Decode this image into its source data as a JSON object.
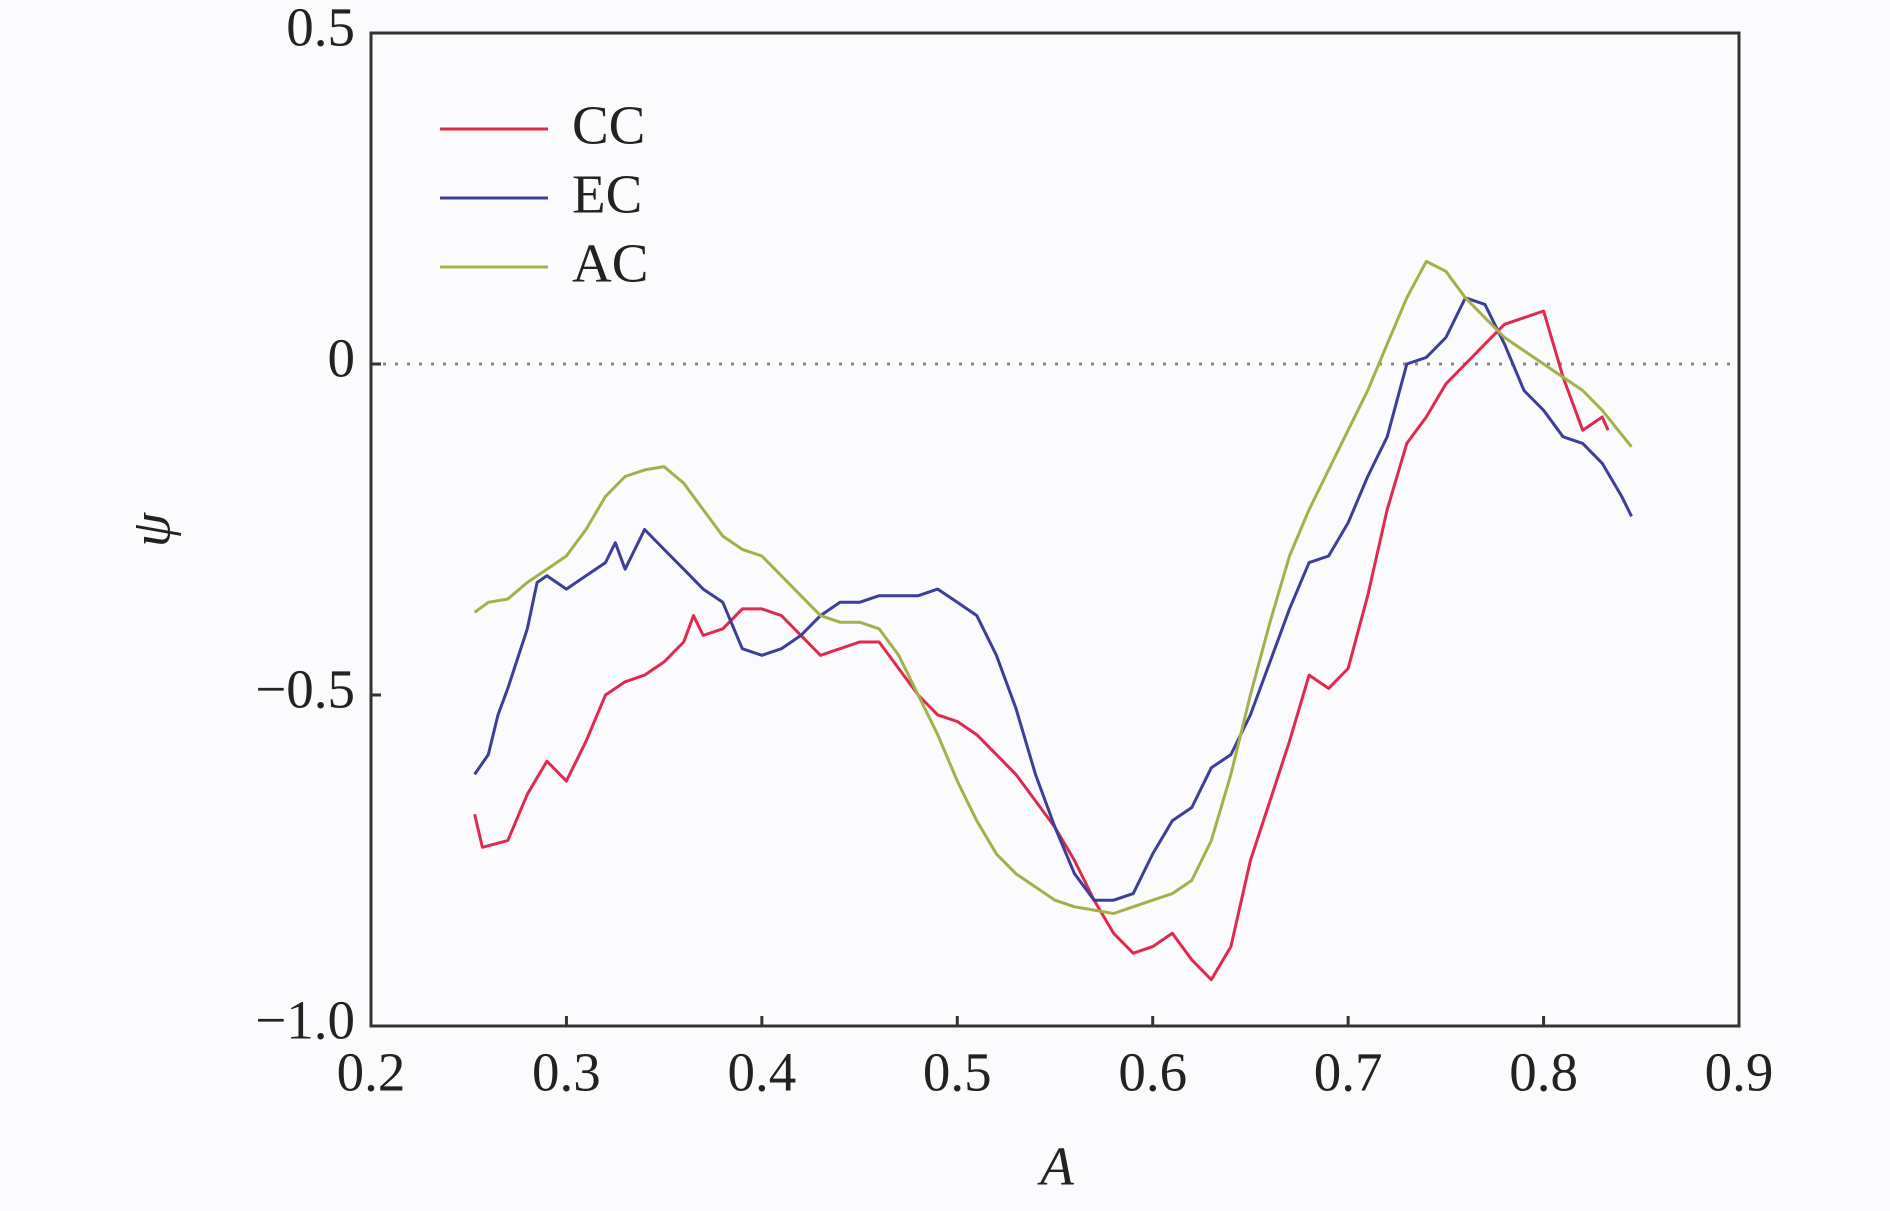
{
  "chart_data": {
    "type": "line",
    "xlabel": "A",
    "ylabel": "ψ",
    "xlim": [
      0.2,
      0.9
    ],
    "xticks": [
      0.2,
      0.3,
      0.4,
      0.5,
      0.6,
      0.7,
      0.8,
      0.9
    ],
    "ylim": [
      -1.0,
      0.5
    ],
    "yticks": [
      {
        "value": -1.0,
        "label": "−1.0"
      },
      {
        "value": -0.5,
        "label": "−0.5"
      },
      0,
      0.5
    ],
    "hline": 0,
    "legend": "upper-left",
    "series": [
      {
        "name": "CC",
        "color": "#e0294e",
        "x": [
          0.253,
          0.257,
          0.27,
          0.28,
          0.29,
          0.3,
          0.31,
          0.32,
          0.33,
          0.34,
          0.35,
          0.36,
          0.365,
          0.37,
          0.38,
          0.39,
          0.4,
          0.41,
          0.42,
          0.43,
          0.44,
          0.45,
          0.46,
          0.47,
          0.48,
          0.49,
          0.5,
          0.51,
          0.52,
          0.53,
          0.54,
          0.55,
          0.56,
          0.57,
          0.58,
          0.59,
          0.6,
          0.61,
          0.62,
          0.63,
          0.64,
          0.65,
          0.66,
          0.67,
          0.68,
          0.69,
          0.7,
          0.71,
          0.72,
          0.73,
          0.74,
          0.75,
          0.76,
          0.77,
          0.78,
          0.79,
          0.8,
          0.81,
          0.82,
          0.83,
          0.833
        ],
        "values": [
          -0.68,
          -0.73,
          -0.72,
          -0.65,
          -0.6,
          -0.63,
          -0.57,
          -0.5,
          -0.48,
          -0.47,
          -0.45,
          -0.42,
          -0.38,
          -0.41,
          -0.4,
          -0.37,
          -0.37,
          -0.38,
          -0.41,
          -0.44,
          -0.43,
          -0.42,
          -0.42,
          -0.46,
          -0.5,
          -0.53,
          -0.54,
          -0.56,
          -0.59,
          -0.62,
          -0.66,
          -0.7,
          -0.75,
          -0.81,
          -0.86,
          -0.89,
          -0.88,
          -0.86,
          -0.9,
          -0.93,
          -0.88,
          -0.75,
          -0.66,
          -0.57,
          -0.47,
          -0.49,
          -0.46,
          -0.35,
          -0.22,
          -0.12,
          -0.08,
          -0.03,
          0.0,
          0.03,
          0.06,
          0.07,
          0.08,
          -0.02,
          -0.1,
          -0.08,
          -0.1
        ]
      },
      {
        "name": "EC",
        "color": "#3b3f96",
        "x": [
          0.253,
          0.26,
          0.265,
          0.27,
          0.28,
          0.285,
          0.29,
          0.3,
          0.31,
          0.32,
          0.325,
          0.33,
          0.34,
          0.35,
          0.36,
          0.37,
          0.38,
          0.39,
          0.4,
          0.41,
          0.42,
          0.43,
          0.44,
          0.45,
          0.46,
          0.47,
          0.48,
          0.49,
          0.5,
          0.51,
          0.52,
          0.53,
          0.54,
          0.55,
          0.56,
          0.57,
          0.58,
          0.59,
          0.6,
          0.61,
          0.62,
          0.63,
          0.64,
          0.65,
          0.66,
          0.67,
          0.68,
          0.69,
          0.7,
          0.71,
          0.72,
          0.73,
          0.74,
          0.75,
          0.76,
          0.77,
          0.78,
          0.79,
          0.8,
          0.81,
          0.82,
          0.83,
          0.84,
          0.845
        ],
        "values": [
          -0.62,
          -0.59,
          -0.53,
          -0.49,
          -0.4,
          -0.33,
          -0.32,
          -0.34,
          -0.32,
          -0.3,
          -0.27,
          -0.31,
          -0.25,
          -0.28,
          -0.31,
          -0.34,
          -0.36,
          -0.43,
          -0.44,
          -0.43,
          -0.41,
          -0.38,
          -0.36,
          -0.36,
          -0.35,
          -0.35,
          -0.35,
          -0.34,
          -0.36,
          -0.38,
          -0.44,
          -0.52,
          -0.62,
          -0.7,
          -0.77,
          -0.81,
          -0.81,
          -0.8,
          -0.74,
          -0.69,
          -0.67,
          -0.61,
          -0.59,
          -0.53,
          -0.45,
          -0.37,
          -0.3,
          -0.29,
          -0.24,
          -0.17,
          -0.11,
          0.0,
          0.01,
          0.04,
          0.1,
          0.09,
          0.03,
          -0.04,
          -0.07,
          -0.11,
          -0.12,
          -0.15,
          -0.2,
          -0.23
        ]
      },
      {
        "name": "AC",
        "color": "#a4b04a",
        "x": [
          0.253,
          0.26,
          0.27,
          0.28,
          0.29,
          0.3,
          0.31,
          0.32,
          0.33,
          0.34,
          0.35,
          0.36,
          0.37,
          0.38,
          0.39,
          0.4,
          0.41,
          0.42,
          0.43,
          0.44,
          0.45,
          0.46,
          0.47,
          0.48,
          0.49,
          0.5,
          0.51,
          0.52,
          0.53,
          0.54,
          0.55,
          0.56,
          0.57,
          0.58,
          0.59,
          0.6,
          0.61,
          0.62,
          0.63,
          0.64,
          0.65,
          0.66,
          0.67,
          0.68,
          0.69,
          0.7,
          0.71,
          0.72,
          0.73,
          0.74,
          0.75,
          0.76,
          0.77,
          0.78,
          0.79,
          0.8,
          0.81,
          0.82,
          0.83,
          0.845
        ],
        "values": [
          -0.375,
          -0.36,
          -0.355,
          -0.33,
          -0.31,
          -0.29,
          -0.25,
          -0.2,
          -0.17,
          -0.16,
          -0.155,
          -0.18,
          -0.22,
          -0.26,
          -0.28,
          -0.29,
          -0.32,
          -0.35,
          -0.38,
          -0.39,
          -0.39,
          -0.4,
          -0.44,
          -0.5,
          -0.56,
          -0.63,
          -0.69,
          -0.74,
          -0.77,
          -0.79,
          -0.81,
          -0.82,
          -0.825,
          -0.83,
          -0.82,
          -0.81,
          -0.8,
          -0.78,
          -0.72,
          -0.62,
          -0.5,
          -0.39,
          -0.29,
          -0.22,
          -0.16,
          -0.1,
          -0.04,
          0.03,
          0.1,
          0.155,
          0.14,
          0.1,
          0.07,
          0.04,
          0.02,
          0.0,
          -0.02,
          -0.04,
          -0.07,
          -0.125
        ]
      }
    ]
  }
}
